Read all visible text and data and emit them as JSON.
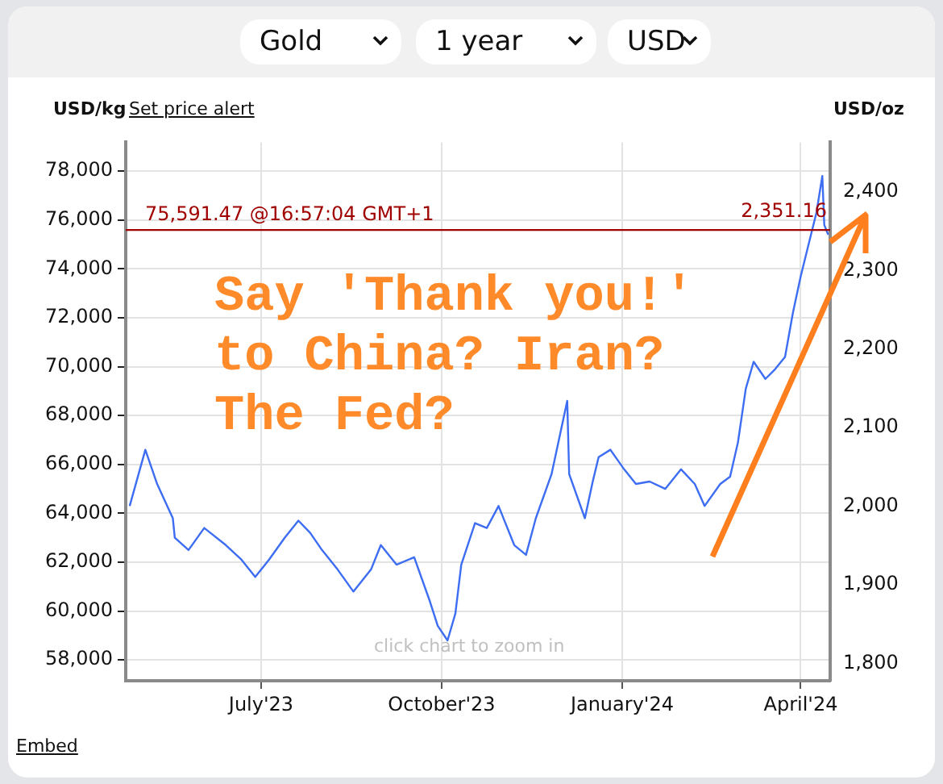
{
  "chart_data": {
    "type": "line",
    "x": [
      "2023-04-25",
      "2023-05-03",
      "2023-05-09",
      "2023-05-17",
      "2023-05-18",
      "2023-05-25",
      "2023-06-02",
      "2023-06-13",
      "2023-06-21",
      "2023-06-28",
      "2023-07-05",
      "2023-07-13",
      "2023-07-20",
      "2023-07-26",
      "2023-08-01",
      "2023-08-09",
      "2023-08-17",
      "2023-08-26",
      "2023-08-31",
      "2023-09-08",
      "2023-09-17",
      "2023-09-25",
      "2023-09-29",
      "2023-10-04",
      "2023-10-08",
      "2023-10-11",
      "2023-10-18",
      "2023-10-24",
      "2023-10-30",
      "2023-11-07",
      "2023-11-13",
      "2023-11-18",
      "2023-11-26",
      "2023-12-04",
      "2023-12-05",
      "2023-12-13",
      "2023-12-17",
      "2023-12-20",
      "2023-12-26",
      "2024-01-02",
      "2024-01-08",
      "2024-01-15",
      "2024-01-23",
      "2024-01-31",
      "2024-02-07",
      "2024-02-12",
      "2024-02-20",
      "2024-02-25",
      "2024-02-29",
      "2024-03-04",
      "2024-03-08",
      "2024-03-14",
      "2024-03-19",
      "2024-03-24",
      "2024-03-28",
      "2024-04-01",
      "2024-04-05",
      "2024-04-09",
      "2024-04-12",
      "2024-04-13",
      "2024-04-15"
    ],
    "series": [
      {
        "color": "#3d6df2",
        "values": [
          64300,
          66600,
          65200,
          63800,
          63000,
          62500,
          63400,
          62700,
          62100,
          61400,
          62100,
          63000,
          63700,
          63200,
          62500,
          61700,
          60800,
          61700,
          62700,
          61900,
          62200,
          60400,
          59400,
          58800,
          59900,
          61900,
          63600,
          63400,
          64300,
          62700,
          62300,
          63800,
          65600,
          68600,
          65600,
          63800,
          65300,
          66300,
          66600,
          65800,
          65200,
          65300,
          65000,
          65800,
          65200,
          64300,
          65200,
          65500,
          66900,
          69100,
          70200,
          69500,
          69900,
          70400,
          72200,
          73700,
          75000,
          76300,
          77800,
          75800,
          75400
        ]
      }
    ],
    "xlim": [
      "2023-04-23",
      "2024-04-16"
    ],
    "xticks": [
      {
        "value": "2023-07-01",
        "label": "July'23"
      },
      {
        "value": "2023-10-01",
        "label": "October'23"
      },
      {
        "value": "2024-01-01",
        "label": "January'24"
      },
      {
        "value": "2024-04-01",
        "label": "April'24"
      }
    ],
    "ylim": [
      57150,
      79180
    ],
    "yticks": [
      {
        "value": 58000,
        "label": "58,000"
      },
      {
        "value": 60000,
        "label": "60,000"
      },
      {
        "value": 62000,
        "label": "62,000"
      },
      {
        "value": 64000,
        "label": "64,000"
      },
      {
        "value": 66000,
        "label": "66,000"
      },
      {
        "value": 68000,
        "label": "68,000"
      },
      {
        "value": 70000,
        "label": "70,000"
      },
      {
        "value": 72000,
        "label": "72,000"
      },
      {
        "value": 74000,
        "label": "74,000"
      },
      {
        "value": 76000,
        "label": "76,000"
      },
      {
        "value": 78000,
        "label": "78,000"
      }
    ],
    "y2lim": [
      1778,
      2463
    ],
    "y2ticks": [
      {
        "value": 1800,
        "label": "1,800"
      },
      {
        "value": 1900,
        "label": "1,900"
      },
      {
        "value": 2000,
        "label": "2,000"
      },
      {
        "value": 2100,
        "label": "2,100"
      },
      {
        "value": 2200,
        "label": "2,200"
      },
      {
        "value": 2300,
        "label": "2,300"
      },
      {
        "value": 2400,
        "label": "2,400"
      }
    ],
    "ylabel": "USD/kg",
    "y2label": "USD/oz",
    "grid": true,
    "ref_lines": [
      {
        "axis": "y",
        "value": 75591.47,
        "label": "75,591.47 @16:57:04 GMT+1",
        "color": "#a00000"
      }
    ],
    "annotations": [
      "Gold",
      "1 year",
      "USD",
      "Set price alert",
      "Say 'Thank you!' to China? Iran? The Fed?",
      "click chart to zoom in",
      "Embed",
      {
        "text": "2,351.16",
        "x": "2024-04-16",
        "y": 75591.47
      }
    ]
  }
}
